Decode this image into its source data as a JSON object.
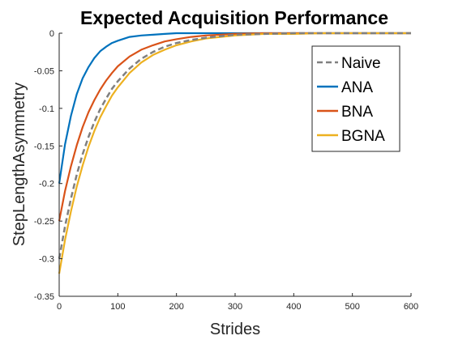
{
  "chart_data": {
    "type": "line",
    "title": "Expected Acquisition Performance",
    "xlabel": "Strides",
    "ylabel": "StepLengthAsymmetry",
    "xlim": [
      0,
      600
    ],
    "ylim": [
      -0.35,
      0
    ],
    "xticks": [
      0,
      100,
      200,
      300,
      400,
      500,
      600
    ],
    "xtick_labels": [
      "0",
      "100",
      "200",
      "300",
      "400",
      "500",
      "600"
    ],
    "yticks": [
      0,
      -0.05,
      -0.1,
      -0.15,
      -0.2,
      -0.25,
      -0.3,
      -0.35
    ],
    "ytick_labels": [
      "0",
      "-0.05",
      "-0.1",
      "-0.15",
      "-0.2",
      "-0.25",
      "-0.3",
      "-0.35"
    ],
    "grid": false,
    "legend_position": "top-right",
    "x": [
      0,
      10,
      20,
      30,
      40,
      50,
      60,
      70,
      80,
      90,
      100,
      120,
      140,
      160,
      180,
      200,
      225,
      250,
      275,
      300,
      350,
      400,
      450,
      500,
      550,
      600
    ],
    "series": [
      {
        "name": "Naive",
        "color": "#808080",
        "style": "dashed",
        "values": [
          -0.3,
          -0.257,
          -0.22,
          -0.188,
          -0.161,
          -0.138,
          -0.118,
          -0.101,
          -0.087,
          -0.074,
          -0.064,
          -0.047,
          -0.034,
          -0.025,
          -0.018,
          -0.013,
          -0.009,
          -0.006,
          -0.004,
          -0.002,
          -0.001,
          0,
          0,
          0,
          0,
          0
        ]
      },
      {
        "name": "ANA",
        "color": "#0072BD",
        "style": "solid",
        "values": [
          -0.2,
          -0.148,
          -0.11,
          -0.081,
          -0.06,
          -0.045,
          -0.033,
          -0.024,
          -0.018,
          -0.013,
          -0.01,
          -0.005,
          -0.003,
          -0.002,
          -0.001,
          0,
          0,
          0,
          0,
          0,
          0,
          0,
          0,
          0,
          0,
          0
        ]
      },
      {
        "name": "BNA",
        "color": "#D95319",
        "style": "solid",
        "values": [
          -0.25,
          -0.21,
          -0.177,
          -0.149,
          -0.125,
          -0.105,
          -0.089,
          -0.075,
          -0.063,
          -0.053,
          -0.044,
          -0.031,
          -0.022,
          -0.016,
          -0.011,
          -0.008,
          -0.005,
          -0.003,
          -0.002,
          -0.001,
          0,
          0,
          0,
          0,
          0,
          0
        ]
      },
      {
        "name": "BGNA",
        "color": "#EDB120",
        "style": "solid",
        "values": [
          -0.32,
          -0.275,
          -0.237,
          -0.204,
          -0.176,
          -0.151,
          -0.13,
          -0.112,
          -0.097,
          -0.083,
          -0.072,
          -0.053,
          -0.039,
          -0.029,
          -0.022,
          -0.016,
          -0.011,
          -0.007,
          -0.005,
          -0.003,
          -0.001,
          -0.001,
          0,
          0,
          0,
          0
        ]
      }
    ]
  }
}
